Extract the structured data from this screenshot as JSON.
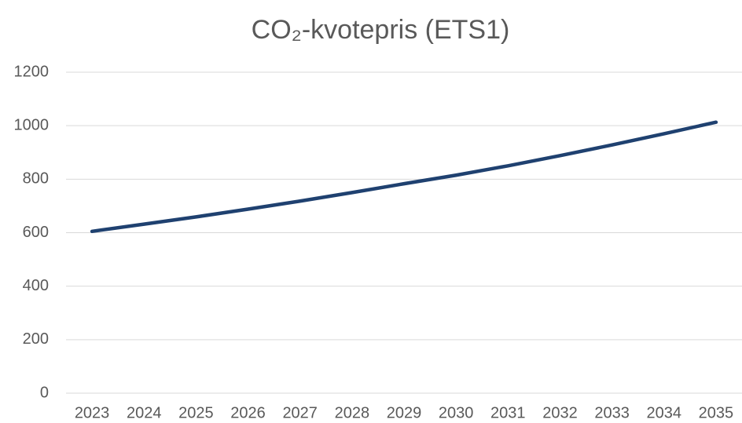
{
  "chart_data": {
    "type": "line",
    "title": "CO₂-kvotepris (ETS1)",
    "categories": [
      "2023",
      "2024",
      "2025",
      "2026",
      "2027",
      "2028",
      "2029",
      "2030",
      "2031",
      "2032",
      "2033",
      "2034",
      "2035"
    ],
    "series": [
      {
        "name": "CO₂-kvotepris",
        "color": "#1f4170",
        "values": [
          605,
          632,
          659,
          688,
          718,
          750,
          783,
          815,
          850,
          888,
          928,
          970,
          1013
        ]
      }
    ],
    "ylim": [
      0,
      1200
    ],
    "yticks": [
      0,
      200,
      400,
      600,
      800,
      1000,
      1200
    ],
    "grid": true
  }
}
